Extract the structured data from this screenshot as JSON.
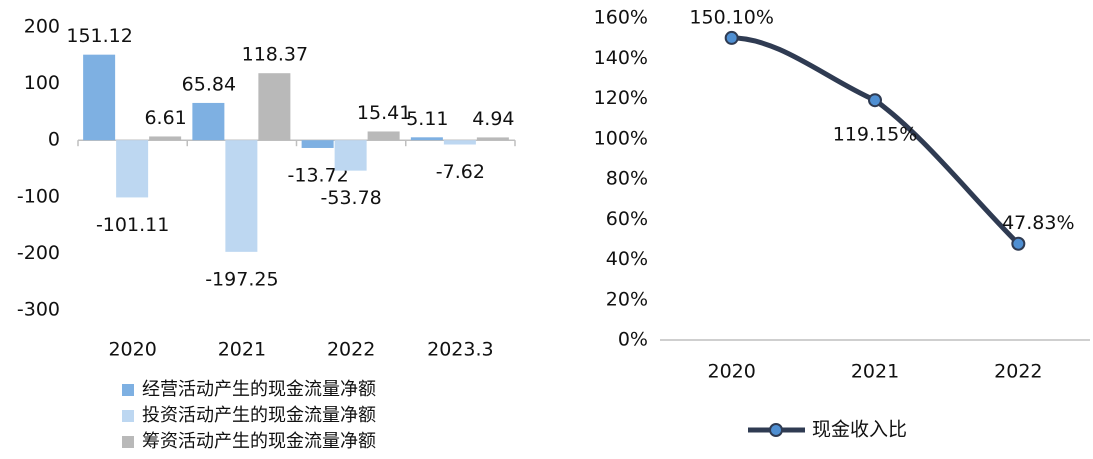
{
  "chart_data": [
    {
      "type": "bar",
      "categories": [
        "2020",
        "2021",
        "2022",
        "2023.3"
      ],
      "series": [
        {
          "name": "经营活动产生的现金流量净额",
          "color": "#7eb0e2",
          "values": [
            151.12,
            65.84,
            -13.72,
            5.11
          ]
        },
        {
          "name": "投资活动产生的现金流量净额",
          "color": "#bdd7f1",
          "values": [
            -101.11,
            -197.25,
            -53.78,
            -7.62
          ]
        },
        {
          "name": "筹资活动产生的现金流量净额",
          "color": "#b9b9b9",
          "values": [
            6.61,
            118.37,
            15.41,
            4.94
          ]
        }
      ],
      "ylim": [
        -300,
        200
      ],
      "yticks": [
        200,
        100,
        0,
        -100,
        -200,
        -300
      ],
      "grid": false
    },
    {
      "type": "line",
      "categories": [
        "2020",
        "2021",
        "2022"
      ],
      "series": [
        {
          "name": "现金收入比",
          "color": "#2f3b52",
          "marker_color": "#4f8fd2",
          "values": [
            150.1,
            119.15,
            47.83
          ],
          "value_labels": [
            "150.10%",
            "119.15%",
            "47.83%"
          ]
        }
      ],
      "ylim": [
        0,
        160
      ],
      "yticks": [
        {
          "value": 160,
          "label": "160%"
        },
        {
          "value": 140,
          "label": "140%"
        },
        {
          "value": 120,
          "label": "120%"
        },
        {
          "value": 100,
          "label": "100%"
        },
        {
          "value": 80,
          "label": "80%"
        },
        {
          "value": 60,
          "label": "60%"
        },
        {
          "value": 40,
          "label": "40%"
        },
        {
          "value": 20,
          "label": "20%"
        },
        {
          "value": 0,
          "label": "0%"
        }
      ],
      "grid": false
    }
  ]
}
